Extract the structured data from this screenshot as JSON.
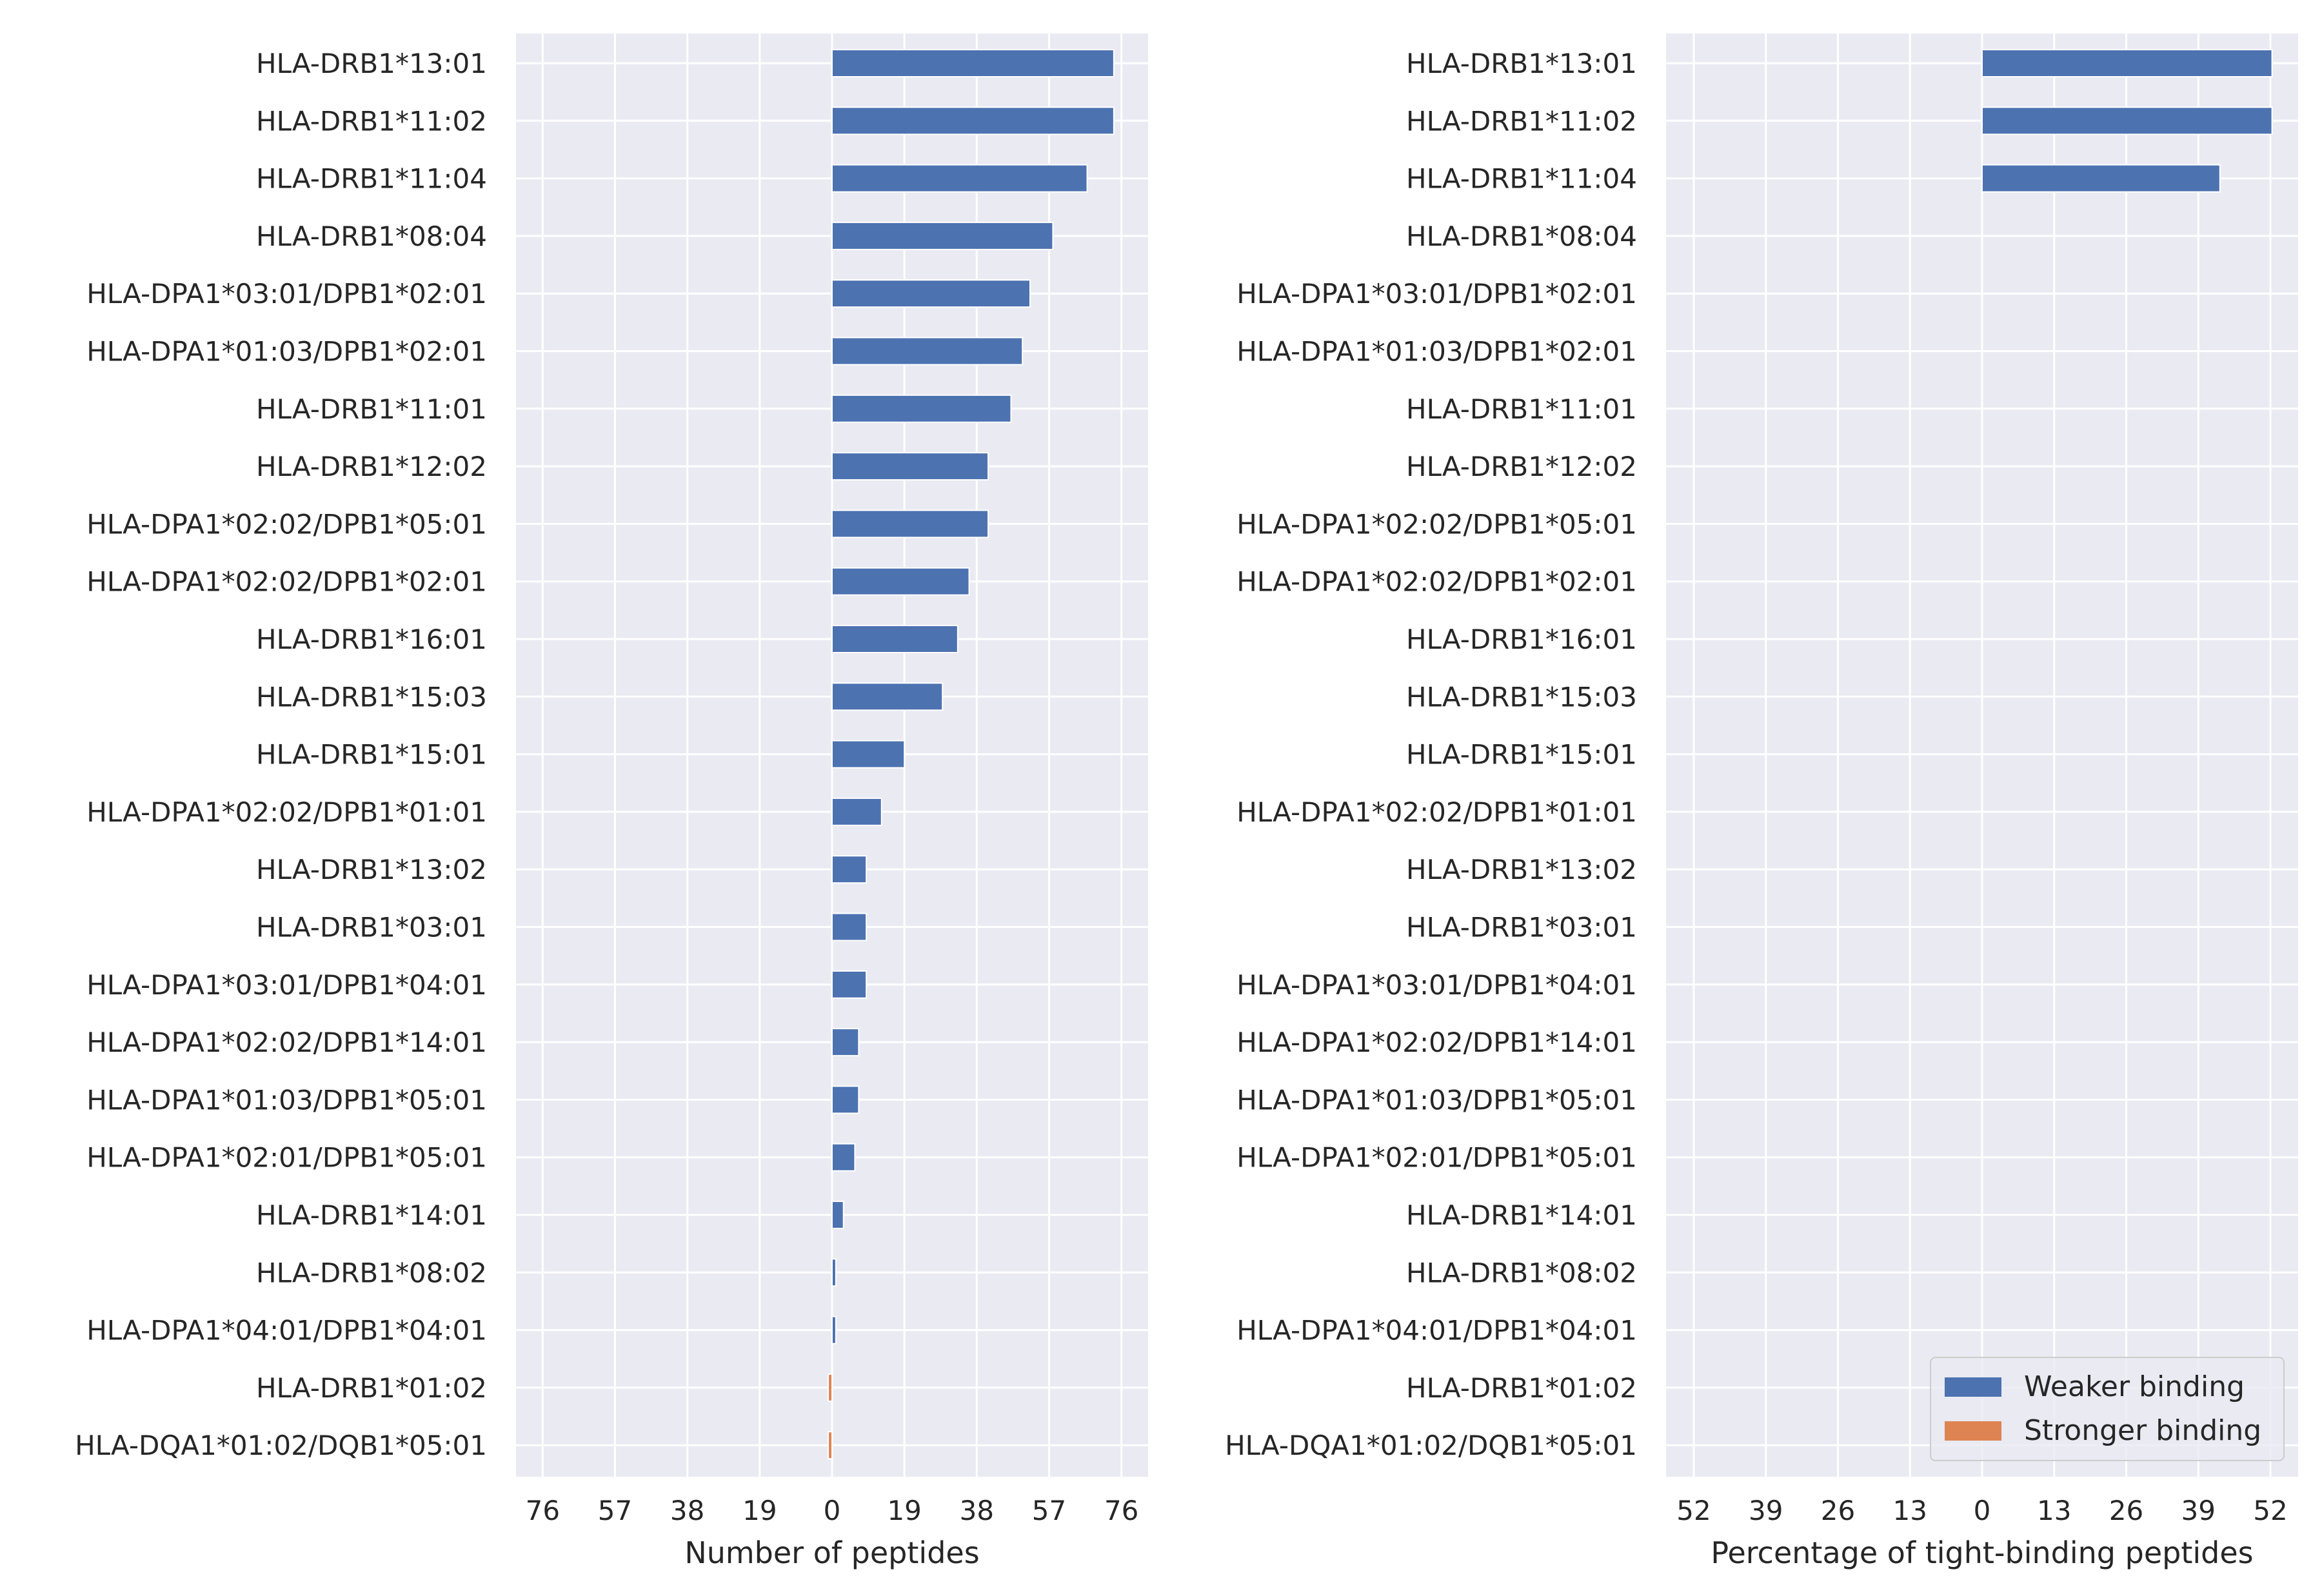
{
  "colors": {
    "weaker": "#4c72b0",
    "stronger": "#dd8452",
    "panel_bg": "#eaeaf2",
    "grid": "#ffffff"
  },
  "chart_data": [
    {
      "type": "bar",
      "orientation": "horizontal",
      "categories": [
        "HLA-DRB1*13:01",
        "HLA-DRB1*11:02",
        "HLA-DRB1*11:04",
        "HLA-DRB1*08:04",
        "HLA-DPA1*03:01/DPB1*02:01",
        "HLA-DPA1*01:03/DPB1*02:01",
        "HLA-DRB1*11:01",
        "HLA-DRB1*12:02",
        "HLA-DPA1*02:02/DPB1*05:01",
        "HLA-DPA1*02:02/DPB1*02:01",
        "HLA-DRB1*16:01",
        "HLA-DRB1*15:03",
        "HLA-DRB1*15:01",
        "HLA-DPA1*02:02/DPB1*01:01",
        "HLA-DRB1*13:02",
        "HLA-DRB1*03:01",
        "HLA-DPA1*03:01/DPB1*04:01",
        "HLA-DPA1*02:02/DPB1*14:01",
        "HLA-DPA1*01:03/DPB1*05:01",
        "HLA-DPA1*02:01/DPB1*05:01",
        "HLA-DRB1*14:01",
        "HLA-DRB1*08:02",
        "HLA-DPA1*04:01/DPB1*04:01",
        "HLA-DRB1*01:02",
        "HLA-DQA1*01:02/DQB1*05:01"
      ],
      "series": [
        {
          "name": "Weaker binding",
          "direction": "right",
          "values": [
            74,
            74,
            67,
            58,
            52,
            50,
            47,
            41,
            41,
            36,
            33,
            29,
            19,
            13,
            9,
            9,
            9,
            7,
            7,
            6,
            3,
            1,
            1,
            0,
            0
          ]
        },
        {
          "name": "Stronger binding",
          "direction": "left",
          "values": [
            0,
            0,
            0,
            0,
            0,
            0,
            0,
            0,
            0,
            0,
            0,
            0,
            0,
            0,
            0,
            0,
            0,
            0,
            0,
            0,
            0,
            0,
            0,
            1,
            1
          ]
        }
      ],
      "xlim": [
        -83,
        83
      ],
      "xticks": [
        -76,
        -57,
        -38,
        -19,
        0,
        19,
        38,
        57,
        76
      ],
      "xtick_labels": [
        "76",
        "57",
        "38",
        "19",
        "0",
        "19",
        "38",
        "57",
        "76"
      ],
      "xlabel": "Number of peptides",
      "ylabel": "",
      "grid": true
    },
    {
      "type": "bar",
      "orientation": "horizontal",
      "categories": [
        "HLA-DRB1*13:01",
        "HLA-DRB1*11:02",
        "HLA-DRB1*11:04",
        "HLA-DRB1*08:04",
        "HLA-DPA1*03:01/DPB1*02:01",
        "HLA-DPA1*01:03/DPB1*02:01",
        "HLA-DRB1*11:01",
        "HLA-DRB1*12:02",
        "HLA-DPA1*02:02/DPB1*05:01",
        "HLA-DPA1*02:02/DPB1*02:01",
        "HLA-DRB1*16:01",
        "HLA-DRB1*15:03",
        "HLA-DRB1*15:01",
        "HLA-DPA1*02:02/DPB1*01:01",
        "HLA-DRB1*13:02",
        "HLA-DRB1*03:01",
        "HLA-DPA1*03:01/DPB1*04:01",
        "HLA-DPA1*02:02/DPB1*14:01",
        "HLA-DPA1*01:03/DPB1*05:01",
        "HLA-DPA1*02:01/DPB1*05:01",
        "HLA-DRB1*14:01",
        "HLA-DRB1*08:02",
        "HLA-DPA1*04:01/DPB1*04:01",
        "HLA-DRB1*01:02",
        "HLA-DQA1*01:02/DQB1*05:01"
      ],
      "series": [
        {
          "name": "Weaker binding",
          "direction": "right",
          "values": [
            52.3,
            52.3,
            42.9,
            0,
            0,
            0,
            0,
            0,
            0,
            0,
            0,
            0,
            0,
            0,
            0,
            0,
            0,
            0,
            0,
            0,
            0,
            0,
            0,
            0,
            0
          ]
        },
        {
          "name": "Stronger binding",
          "direction": "left",
          "values": [
            0,
            0,
            0,
            0,
            0,
            0,
            0,
            0,
            0,
            0,
            0,
            0,
            0,
            0,
            0,
            0,
            0,
            0,
            0,
            0,
            0,
            0,
            0,
            0,
            0
          ]
        }
      ],
      "xlim": [
        -57,
        57
      ],
      "xticks": [
        -52,
        -39,
        -26,
        -13,
        0,
        13,
        26,
        39,
        52
      ],
      "xtick_labels": [
        "52",
        "39",
        "26",
        "13",
        "0",
        "13",
        "26",
        "39",
        "52"
      ],
      "xlabel": "Percentage of tight-binding peptides",
      "ylabel": "",
      "grid": true,
      "legend": {
        "location": "lower-right",
        "entries": [
          "Weaker binding",
          "Stronger binding"
        ]
      }
    }
  ]
}
